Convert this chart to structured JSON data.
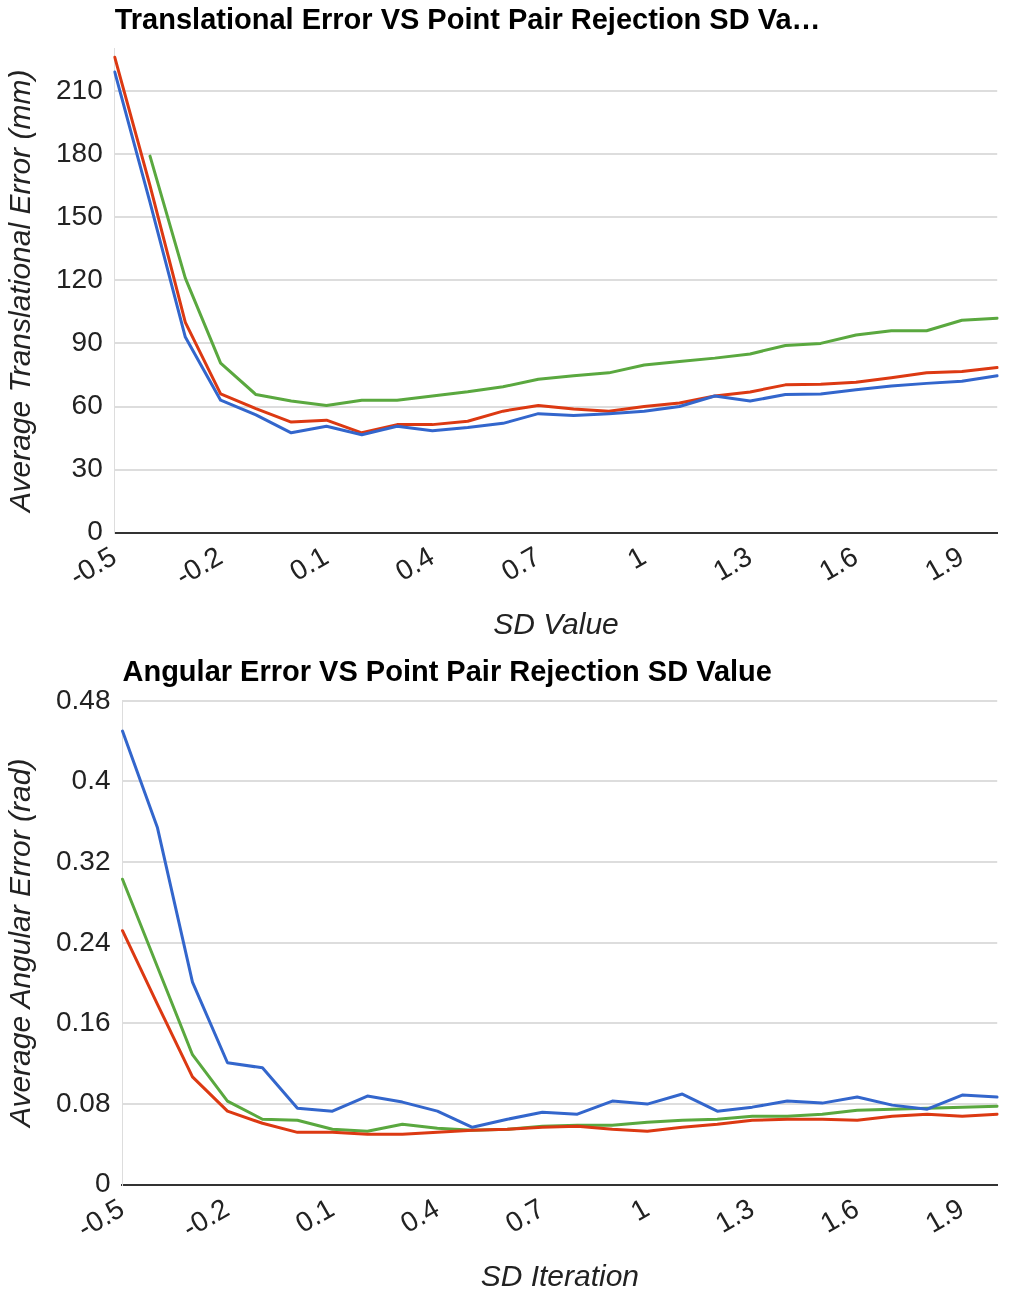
{
  "chart_data": [
    {
      "type": "line",
      "title": "Translational Error VS Point Pair Rejection SD Va…",
      "xlabel": "SD Value",
      "ylabel": "Average Translational Error (mm)",
      "categories": [
        "-0.5",
        null,
        null,
        "-0.2",
        null,
        null,
        "0.1",
        null,
        null,
        "0.4",
        null,
        null,
        "0.7",
        null,
        null,
        "1",
        null,
        null,
        "1.3",
        null,
        null,
        "1.6",
        null,
        null,
        "1.9",
        null
      ],
      "series": [
        {
          "color": "#3366cc",
          "values": [
            219,
            157,
            93,
            63,
            56,
            47.5,
            50.6,
            46.6,
            50.6,
            48.5,
            50,
            52,
            56.6,
            55.7,
            56.6,
            57.8,
            60,
            65,
            62.6,
            65.7,
            66,
            68,
            69.8,
            71,
            72,
            74.6
          ]
        },
        {
          "color": "#dc3912",
          "values": [
            226,
            165,
            100,
            66,
            59,
            52.6,
            53.5,
            47.5,
            51.4,
            51.4,
            53,
            57.8,
            60.5,
            58.8,
            57.8,
            60,
            61.7,
            65,
            66.9,
            70.3,
            70.6,
            71.5,
            73.7,
            76,
            76.6,
            78.5
          ]
        },
        {
          "color": "#5aa83f",
          "values": [
            null,
            179,
            121,
            80.6,
            65.7,
            62.6,
            60.5,
            63,
            63,
            65,
            67,
            69.4,
            73,
            74.6,
            76,
            79.7,
            81.4,
            83,
            85,
            89,
            90,
            94,
            96,
            96,
            101,
            102
          ]
        }
      ],
      "ylim": [
        0,
        230
      ],
      "yticks": [
        0,
        30,
        60,
        90,
        120,
        150,
        180,
        210
      ],
      "grid": "y",
      "legend": false,
      "marker": "none",
      "line_style": "solid"
    },
    {
      "type": "line",
      "title": "Angular Error VS Point Pair Rejection SD Value",
      "xlabel": "SD Iteration",
      "ylabel": "Average Angular Error (rad)",
      "categories": [
        "-0.5",
        null,
        null,
        "-0.2",
        null,
        null,
        "0.1",
        null,
        null,
        "0.4",
        null,
        null,
        "0.7",
        null,
        null,
        "1",
        null,
        null,
        "1.3",
        null,
        null,
        "1.6",
        null,
        null,
        "1.9",
        null
      ],
      "series": [
        {
          "color": "#3366cc",
          "values": [
            0.45,
            0.354,
            0.201,
            0.121,
            0.116,
            0.076,
            0.073,
            0.088,
            0.082,
            0.073,
            0.057,
            0.065,
            0.072,
            0.07,
            0.083,
            0.08,
            0.09,
            0.073,
            0.077,
            0.083,
            0.081,
            0.087,
            0.079,
            0.075,
            0.089,
            0.087
          ]
        },
        {
          "color": "#dc3912",
          "values": [
            0.252,
            0.179,
            0.107,
            0.073,
            0.061,
            0.052,
            0.052,
            0.05,
            0.05,
            0.052,
            0.054,
            0.055,
            0.057,
            0.058,
            0.055,
            0.053,
            0.057,
            0.06,
            0.064,
            0.065,
            0.065,
            0.064,
            0.068,
            0.07,
            0.068,
            0.07
          ]
        },
        {
          "color": "#5aa83f",
          "values": [
            0.303,
            0.216,
            0.129,
            0.083,
            0.065,
            0.064,
            0.055,
            0.053,
            0.06,
            0.056,
            0.054,
            0.055,
            0.058,
            0.059,
            0.059,
            0.062,
            0.064,
            0.065,
            0.068,
            0.068,
            0.07,
            0.074,
            0.075,
            0.076,
            0.077,
            0.078
          ]
        }
      ],
      "ylim": [
        0,
        0.48
      ],
      "yticks": [
        0,
        0.08,
        0.16,
        0.24,
        0.32,
        0.4,
        0.48
      ],
      "grid": "y",
      "legend": false,
      "marker": "none",
      "line_style": "solid"
    }
  ]
}
